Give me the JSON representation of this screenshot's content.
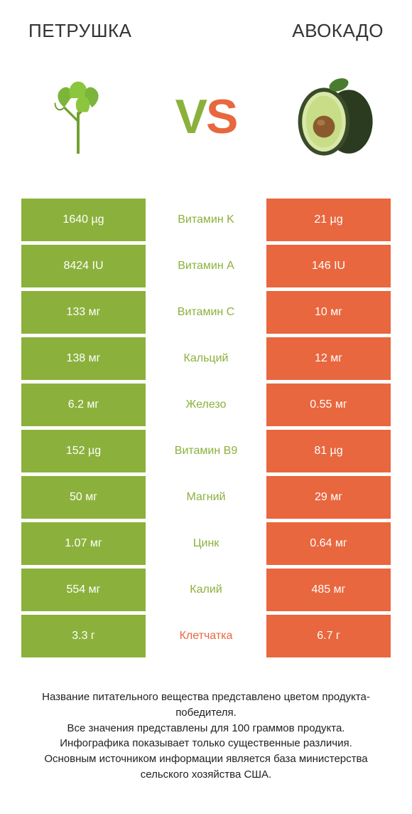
{
  "colors": {
    "left": "#8bb13c",
    "right": "#e8673f",
    "text": "#222222",
    "bg": "#ffffff"
  },
  "header": {
    "left_title": "ПЕТРУШКА",
    "right_title": "АВОКАДО"
  },
  "vs": {
    "v": "V",
    "s": "S"
  },
  "rows": [
    {
      "left": "1640 µg",
      "label": "Витамин K",
      "right": "21 µg",
      "winner": "left"
    },
    {
      "left": "8424 IU",
      "label": "Витамин A",
      "right": "146 IU",
      "winner": "left"
    },
    {
      "left": "133 мг",
      "label": "Витамин C",
      "right": "10 мг",
      "winner": "left"
    },
    {
      "left": "138 мг",
      "label": "Кальций",
      "right": "12 мг",
      "winner": "left"
    },
    {
      "left": "6.2 мг",
      "label": "Железо",
      "right": "0.55 мг",
      "winner": "left"
    },
    {
      "left": "152 µg",
      "label": "Витамин B9",
      "right": "81 µg",
      "winner": "left"
    },
    {
      "left": "50 мг",
      "label": "Магний",
      "right": "29 мг",
      "winner": "left"
    },
    {
      "left": "1.07 мг",
      "label": "Цинк",
      "right": "0.64 мг",
      "winner": "left"
    },
    {
      "left": "554 мг",
      "label": "Калий",
      "right": "485 мг",
      "winner": "left"
    },
    {
      "left": "3.3 г",
      "label": "Клетчатка",
      "right": "6.7 г",
      "winner": "right"
    }
  ],
  "footer": {
    "line1": "Название питательного вещества представлено цветом продукта-победителя.",
    "line2": "Все значения представлены для 100 граммов продукта.",
    "line3": "Инфографика показывает только существенные различия.",
    "line4": "Основным источником информации является база министерства сельского хозяйства США."
  },
  "typography": {
    "title_size": 26,
    "cell_size": 16,
    "footer_size": 15,
    "vs_size": 68
  }
}
